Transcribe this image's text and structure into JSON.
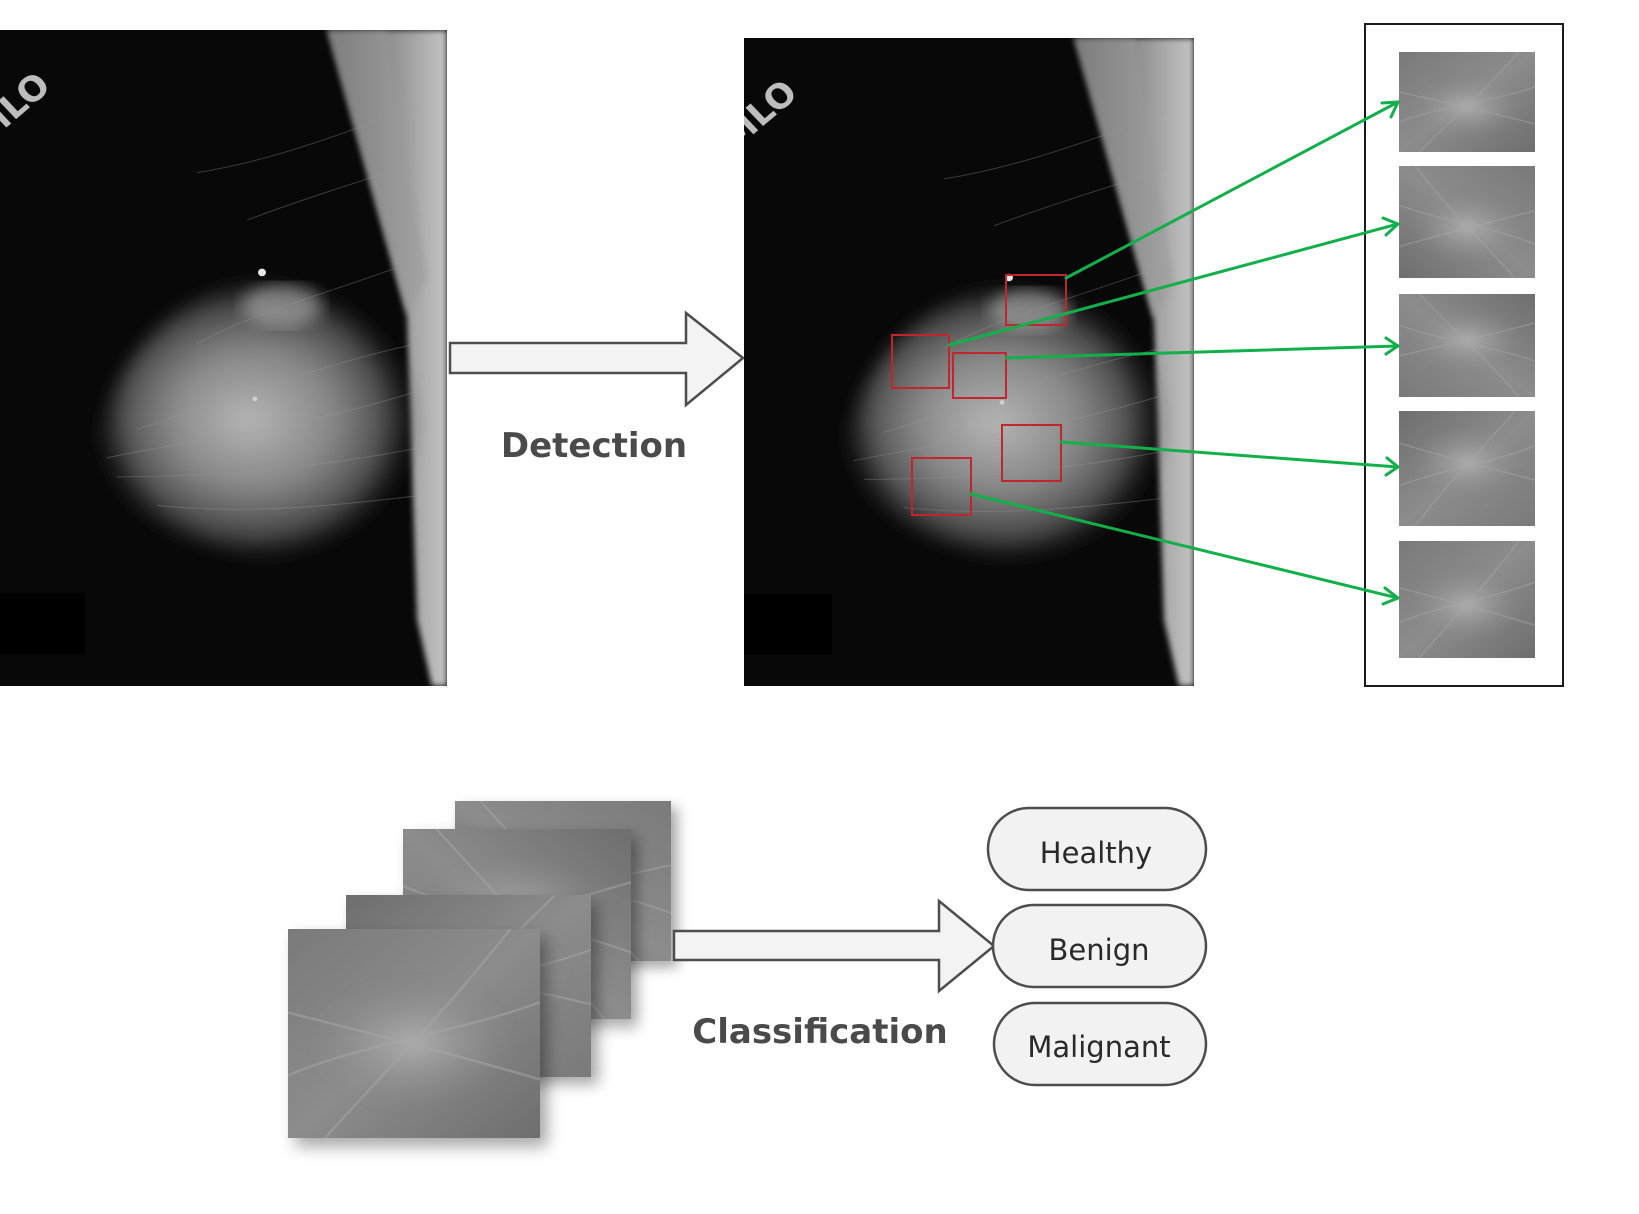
{
  "steps": {
    "detection_label": "Detection",
    "classification_label": "Classification"
  },
  "mammogram": {
    "view_marker": "MLO"
  },
  "classes": [
    "Healthy",
    "Benign",
    "Malignant"
  ],
  "detected_region_count": 5,
  "colors": {
    "detection_box": "#c0272d",
    "link_arrow": "#12b04a",
    "block_arrow_fill": "#f3f3f3",
    "block_arrow_stroke": "#4d4d4d",
    "pill_fill": "#f2f2f2"
  }
}
